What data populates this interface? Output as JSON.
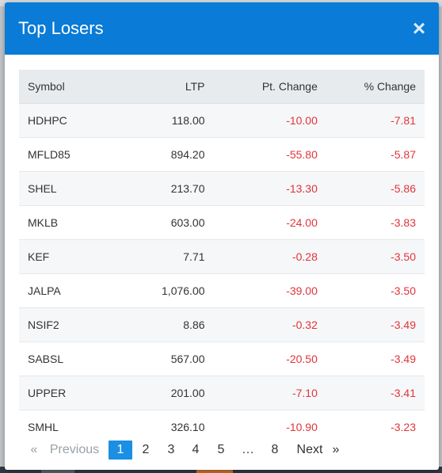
{
  "modal": {
    "title": "Top Losers",
    "close_label": "×"
  },
  "table": {
    "headers": [
      "Symbol",
      "LTP",
      "Pt. Change",
      "% Change"
    ],
    "rows": [
      [
        "HDHPC",
        "118.00",
        "-10.00",
        "-7.81"
      ],
      [
        "MFLD85",
        "894.20",
        "-55.80",
        "-5.87"
      ],
      [
        "SHEL",
        "213.70",
        "-13.30",
        "-5.86"
      ],
      [
        "MKLB",
        "603.00",
        "-24.00",
        "-3.83"
      ],
      [
        "KEF",
        "7.71",
        "-0.28",
        "-3.50"
      ],
      [
        "JALPA",
        "1,076.00",
        "-39.00",
        "-3.50"
      ],
      [
        "NSIF2",
        "8.86",
        "-0.32",
        "-3.49"
      ],
      [
        "SABSL",
        "567.00",
        "-20.50",
        "-3.49"
      ],
      [
        "UPPER",
        "201.00",
        "-7.10",
        "-3.41"
      ],
      [
        "SMHL",
        "326.10",
        "-10.90",
        "-3.23"
      ]
    ]
  },
  "pagination": {
    "prev_arrow": "«",
    "prev_label": "Previous",
    "pages": [
      "1",
      "2",
      "3",
      "4",
      "5",
      "…",
      "8"
    ],
    "active_page": "1",
    "next_label": "Next",
    "next_arrow": "»"
  },
  "colors": {
    "header_bg": "#0a7bd6",
    "negative": "#e0353b",
    "active_page": "#1a8fe3"
  }
}
